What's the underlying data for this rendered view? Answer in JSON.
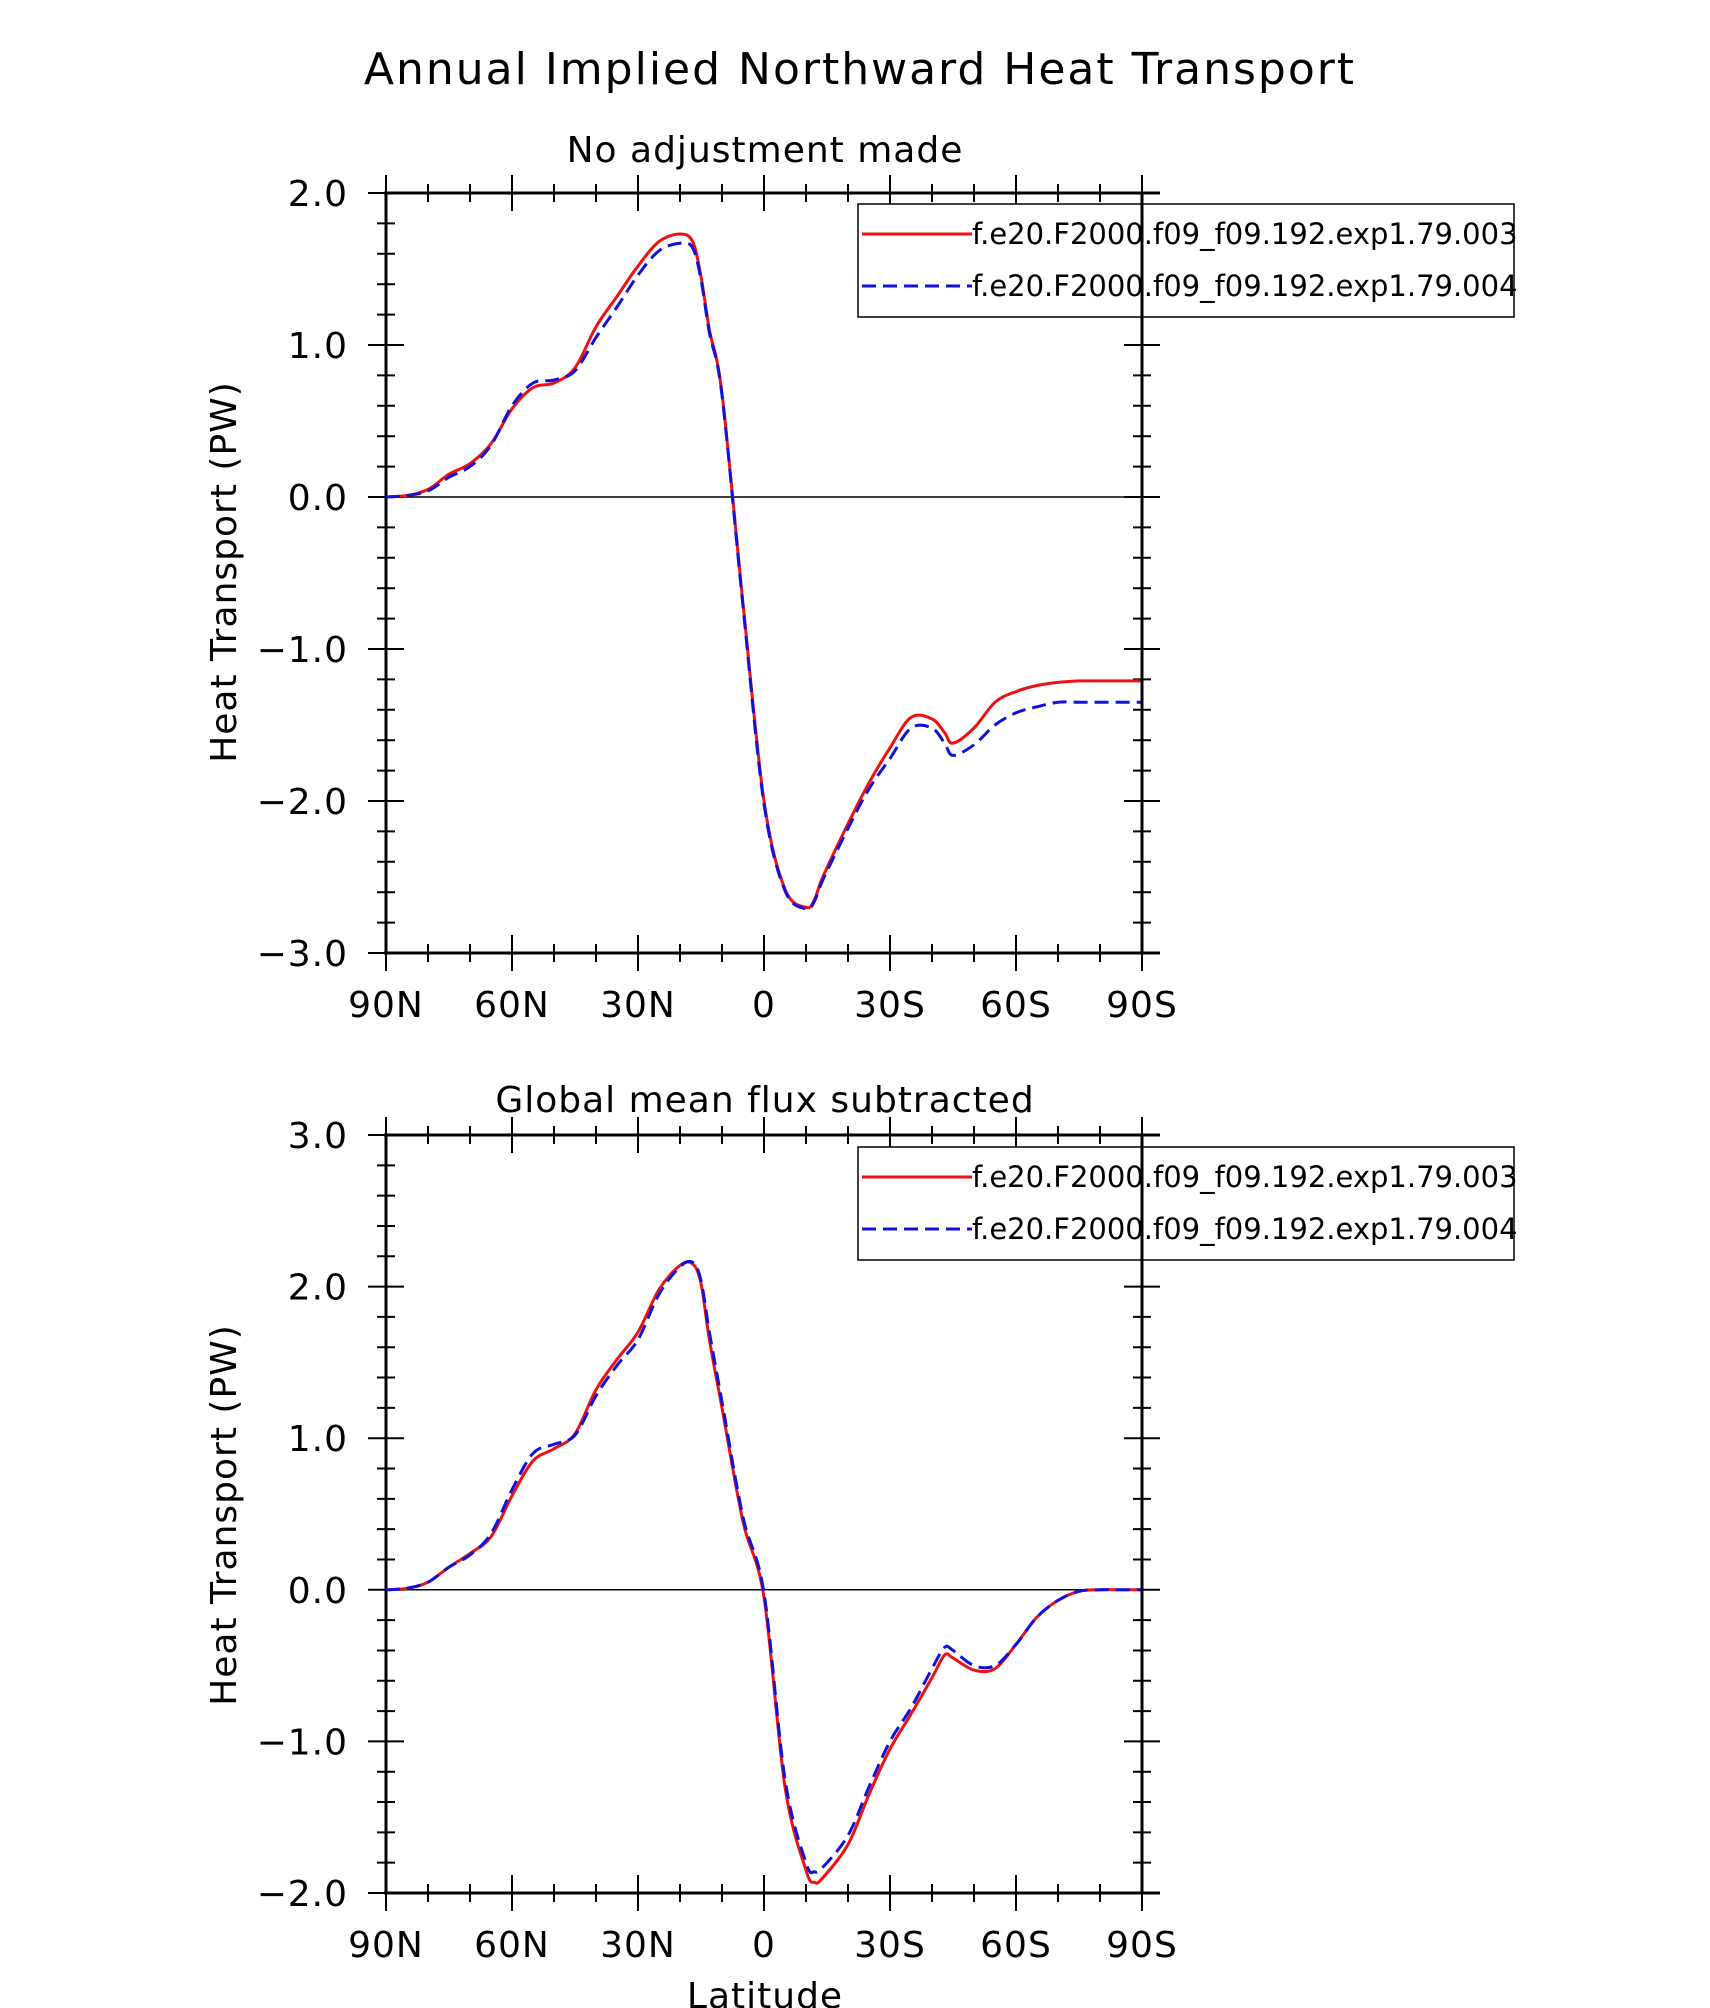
{
  "title": "Annual Implied Northward Heat Transport",
  "colors": {
    "series_1": "#ee1111",
    "series_2": "#1111dd",
    "axis": "#000000"
  },
  "chart_data": [
    {
      "type": "line",
      "title": "No adjustment made",
      "xlabel": "",
      "ylabel": "Heat Transport (PW)",
      "x_direction": "90N to 90S",
      "xlim": [
        90,
        -90
      ],
      "ylim": [
        -3.0,
        2.0
      ],
      "x_ticks": [
        90,
        60,
        30,
        0,
        -30,
        -60,
        -90
      ],
      "x_tick_labels": [
        "90N",
        "60N",
        "30N",
        "0",
        "30S",
        "60S",
        "90S"
      ],
      "y_ticks": [
        2.0,
        1.0,
        0.0,
        -1.0,
        -2.0,
        -3.0
      ],
      "y_tick_labels": [
        "2.0",
        "1.0",
        "0.0",
        "−1.0",
        "−2.0",
        "−3.0"
      ],
      "zero_line": true,
      "grid": false,
      "legend": "top-right",
      "series": [
        {
          "name": "f.e20.F2000.f09_f09.192.exp1.79.003",
          "style": "solid",
          "x": [
            90,
            85,
            80,
            75,
            70,
            65,
            60,
            55,
            50,
            45,
            40,
            35,
            30,
            25,
            20,
            17,
            15,
            13,
            10,
            5,
            0,
            -5,
            -10,
            -12,
            -14,
            -20,
            -25,
            -30,
            -35,
            -40,
            -43,
            -45,
            -50,
            -55,
            -60,
            -65,
            -70,
            -75,
            -80,
            -85,
            -90
          ],
          "y": [
            0.0,
            0.01,
            0.05,
            0.15,
            0.22,
            0.35,
            0.58,
            0.72,
            0.75,
            0.85,
            1.12,
            1.32,
            1.52,
            1.68,
            1.73,
            1.68,
            1.45,
            1.1,
            0.68,
            -0.7,
            -2.0,
            -2.58,
            -2.7,
            -2.65,
            -2.5,
            -2.15,
            -1.88,
            -1.65,
            -1.45,
            -1.46,
            -1.55,
            -1.62,
            -1.52,
            -1.35,
            -1.28,
            -1.24,
            -1.22,
            -1.21,
            -1.21,
            -1.21,
            -1.21
          ]
        },
        {
          "name": "f.e20.F2000.f09_f09.192.exp1.79.004",
          "style": "dashed",
          "x": [
            90,
            85,
            80,
            75,
            70,
            65,
            60,
            55,
            50,
            45,
            40,
            35,
            30,
            25,
            20,
            17,
            15,
            13,
            10,
            5,
            0,
            -5,
            -10,
            -12,
            -14,
            -20,
            -25,
            -30,
            -35,
            -40,
            -43,
            -45,
            -50,
            -55,
            -60,
            -65,
            -70,
            -75,
            -80,
            -85,
            -90
          ],
          "y": [
            0.0,
            0.01,
            0.04,
            0.13,
            0.2,
            0.34,
            0.6,
            0.75,
            0.77,
            0.83,
            1.05,
            1.25,
            1.46,
            1.62,
            1.67,
            1.64,
            1.43,
            1.08,
            0.67,
            -0.72,
            -2.02,
            -2.59,
            -2.71,
            -2.66,
            -2.52,
            -2.18,
            -1.92,
            -1.72,
            -1.52,
            -1.52,
            -1.62,
            -1.7,
            -1.63,
            -1.5,
            -1.42,
            -1.38,
            -1.35,
            -1.35,
            -1.35,
            -1.35,
            -1.35
          ]
        }
      ]
    },
    {
      "type": "line",
      "title": "Global mean flux subtracted",
      "xlabel": "Latitude",
      "ylabel": "Heat Transport (PW)",
      "x_direction": "90N to 90S",
      "xlim": [
        90,
        -90
      ],
      "ylim": [
        -2.0,
        3.0
      ],
      "x_ticks": [
        90,
        60,
        30,
        0,
        -30,
        -60,
        -90
      ],
      "x_tick_labels": [
        "90N",
        "60N",
        "30N",
        "0",
        "30S",
        "60S",
        "90S"
      ],
      "y_ticks": [
        3.0,
        2.0,
        1.0,
        0.0,
        -1.0,
        -2.0
      ],
      "y_tick_labels": [
        "3.0",
        "2.0",
        "1.0",
        "0.0",
        "−1.0",
        "−2.0"
      ],
      "zero_line": true,
      "grid": false,
      "legend": "top-right",
      "series": [
        {
          "name": "f.e20.F2000.f09_f09.192.exp1.79.003",
          "style": "solid",
          "x": [
            90,
            85,
            80,
            75,
            70,
            65,
            60,
            55,
            50,
            45,
            40,
            35,
            30,
            25,
            20,
            17,
            15,
            13,
            10,
            5,
            0,
            -5,
            -10,
            -12,
            -14,
            -20,
            -25,
            -30,
            -35,
            -40,
            -43,
            -45,
            -50,
            -55,
            -60,
            -65,
            -70,
            -75,
            -80,
            -85,
            -90
          ],
          "y": [
            0.0,
            0.01,
            0.05,
            0.15,
            0.24,
            0.35,
            0.62,
            0.85,
            0.93,
            1.03,
            1.32,
            1.52,
            1.7,
            1.98,
            2.14,
            2.15,
            2.02,
            1.65,
            1.2,
            0.45,
            -0.05,
            -1.3,
            -1.85,
            -1.93,
            -1.9,
            -1.68,
            -1.35,
            -1.05,
            -0.82,
            -0.58,
            -0.43,
            -0.45,
            -0.53,
            -0.52,
            -0.36,
            -0.18,
            -0.07,
            -0.01,
            0.0,
            0.0,
            0.0
          ]
        },
        {
          "name": "f.e20.F2000.f09_f09.192.exp1.79.004",
          "style": "dashed",
          "x": [
            90,
            85,
            80,
            75,
            70,
            65,
            60,
            55,
            50,
            45,
            40,
            35,
            30,
            25,
            20,
            17,
            15,
            13,
            10,
            5,
            0,
            -5,
            -10,
            -12,
            -14,
            -20,
            -25,
            -30,
            -35,
            -40,
            -43,
            -45,
            -50,
            -55,
            -60,
            -65,
            -70,
            -75,
            -80,
            -85,
            -90
          ],
          "y": [
            0.0,
            0.01,
            0.05,
            0.15,
            0.23,
            0.37,
            0.66,
            0.9,
            0.96,
            1.02,
            1.28,
            1.48,
            1.65,
            1.95,
            2.13,
            2.16,
            2.04,
            1.7,
            1.24,
            0.48,
            -0.02,
            -1.25,
            -1.8,
            -1.86,
            -1.83,
            -1.62,
            -1.3,
            -1.0,
            -0.78,
            -0.52,
            -0.38,
            -0.4,
            -0.5,
            -0.5,
            -0.36,
            -0.18,
            -0.07,
            -0.01,
            0.0,
            0.0,
            0.0
          ]
        }
      ]
    }
  ]
}
